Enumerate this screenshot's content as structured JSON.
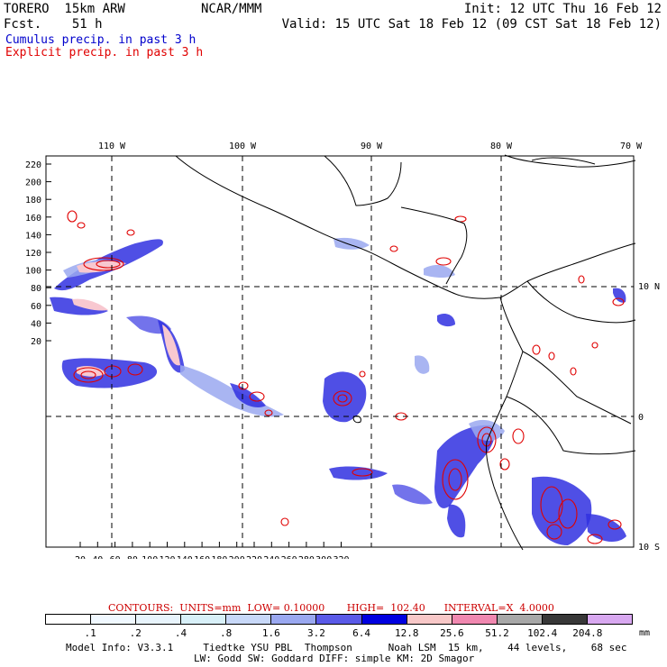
{
  "header": {
    "model_line": "TORERO  15km ARW",
    "forecast_line": "Fcst.    51 h",
    "org": "NCAR/MMM",
    "init": "Init: 12 UTC Thu 16 Feb 12",
    "valid": "Valid: 15 UTC Sat 18 Feb 12 (09 CST Sat 18 Feb 12)"
  },
  "legend": {
    "cumulus": "Cumulus precip. in past 3 h",
    "explicit": "Explicit precip. in past 3 h"
  },
  "map": {
    "top_lon_labels": [
      "110 W",
      "100 W",
      "90 W",
      "80 W",
      "70 W"
    ],
    "right_lat_labels": [
      "10 N",
      "0",
      "10 S"
    ],
    "y_ticks": [
      "220",
      "200",
      "180",
      "160",
      "140",
      "120",
      "100",
      "80",
      "60",
      "40",
      "20"
    ],
    "x_ticks": [
      "20",
      "40",
      "60",
      "80",
      "100",
      "120",
      "140",
      "160",
      "180",
      "200",
      "220",
      "240",
      "260",
      "280",
      "300",
      "320"
    ],
    "colors": {
      "land_outline": "#000000",
      "cumulus_fill": "#2020e0",
      "explicit_contour": "#e00000"
    }
  },
  "contours": {
    "label": "CONTOURS:  UNITS=mm  LOW= 0.10000       HIGH=  102.40      INTERVAL=X  4.0000"
  },
  "colorbar": {
    "labels": [
      ".1",
      ".2",
      ".4",
      ".8",
      "1.6",
      "3.2",
      "6.4",
      "12.8",
      "25.6",
      "51.2",
      "102.4",
      "204.8"
    ],
    "colors": [
      "#ffffff",
      "#f0f8ff",
      "#e8f4fc",
      "#d8f0f8",
      "#c8d8f8",
      "#9aa8f0",
      "#5a5ae8",
      "#0000e0",
      "#f8c8c8",
      "#f088b0",
      "#a8a8a8",
      "#383838",
      "#d8a8f0"
    ],
    "unit": "mm"
  },
  "footer": {
    "line1": "Model Info: V3.3.1     Tiedtke YSU PBL  Thompson      Noah LSM  15 km,    44 levels,    68 sec",
    "line2": "LW: Godd SW: Goddard DIFF: simple KM: 2D Smagor"
  }
}
